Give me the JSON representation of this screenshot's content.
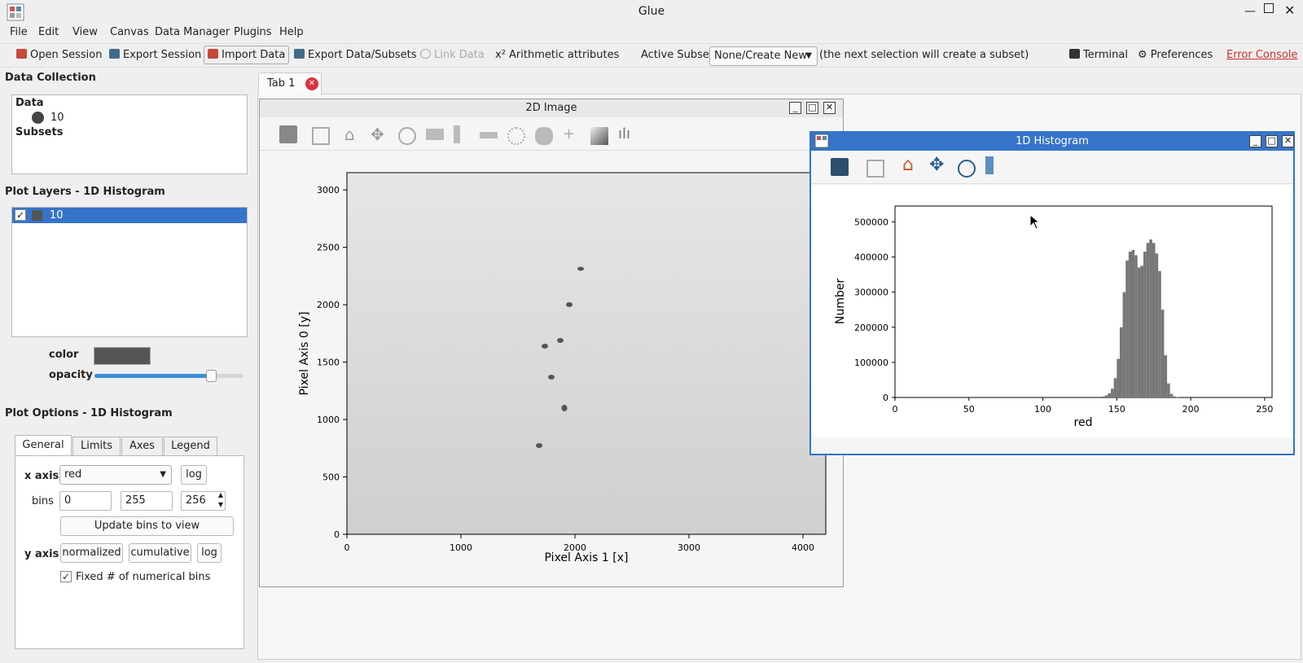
{
  "app": {
    "title": "Glue"
  },
  "menu": [
    "File",
    "Edit",
    "View",
    "Canvas",
    "Data Manager",
    "Plugins",
    "Help"
  ],
  "toolbar": {
    "open_session": "Open Session",
    "export_session": "Export Session",
    "import_data": "Import Data",
    "export_data": "Export Data/Subsets",
    "link_data": "Link Data",
    "arithmetic": "x² Arithmetic attributes",
    "active_subset_label": "Active Subset:",
    "active_subset_value": "None/Create New",
    "active_subset_hint": "(the next selection will create a subset)",
    "terminal": "Terminal",
    "preferences": "Preferences",
    "error_console": "Error Console"
  },
  "data_collection": {
    "title": "Data Collection",
    "data_header": "Data",
    "items": [
      "10"
    ],
    "subsets_header": "Subsets"
  },
  "plot_layers": {
    "title": "Plot Layers - 1D Histogram",
    "items": [
      {
        "label": "10",
        "checked": true
      }
    ],
    "color_label": "color",
    "color_value": "#555555",
    "opacity_label": "opacity",
    "opacity": 0.78
  },
  "plot_options": {
    "title": "Plot Options - 1D Histogram",
    "tabs": [
      "General",
      "Limits",
      "Axes",
      "Legend"
    ],
    "active_tab": "General",
    "x_axis_label": "x axis",
    "x_axis_value": "red",
    "log_label": "log",
    "bins_label": "bins",
    "bins_min": "0",
    "bins_max": "255",
    "bins_count": "256",
    "update_bins": "Update bins to view",
    "y_axis_label": "y axis",
    "normalized": "normalized",
    "cumulative": "cumulative",
    "y_log": "log",
    "fixed_bins_label": "Fixed # of numerical bins",
    "fixed_bins_checked": true
  },
  "tabs": [
    {
      "label": "Tab 1"
    }
  ],
  "image_window": {
    "title": "2D Image",
    "xlabel": "Pixel Axis 1 [x]",
    "ylabel": "Pixel Axis 0 [y]",
    "xticks": [
      "0",
      "1000",
      "2000",
      "3000",
      "4000"
    ],
    "yticks": [
      "0",
      "500",
      "1000",
      "1500",
      "2000",
      "2500",
      "3000"
    ]
  },
  "hist_window": {
    "title": "1D Histogram"
  },
  "chart_data": {
    "type": "bar",
    "title": "",
    "xlabel": "red",
    "ylabel": "Number",
    "xlim": [
      0,
      255
    ],
    "ylim": [
      0,
      545000
    ],
    "xticks": [
      "0",
      "50",
      "100",
      "150",
      "200",
      "250"
    ],
    "yticks": [
      "0",
      "100000",
      "200000",
      "300000",
      "400000",
      "500000"
    ],
    "color": "#777777",
    "x": [
      140,
      142,
      144,
      146,
      148,
      150,
      152,
      154,
      156,
      158,
      160,
      162,
      164,
      166,
      168,
      170,
      172,
      174,
      176,
      178,
      180,
      182,
      184,
      186,
      188,
      190
    ],
    "values": [
      3000,
      6000,
      12000,
      25000,
      55000,
      110000,
      200000,
      300000,
      390000,
      415000,
      420000,
      405000,
      370000,
      375000,
      415000,
      440000,
      450000,
      440000,
      410000,
      360000,
      250000,
      120000,
      40000,
      10000,
      3000,
      1000
    ]
  }
}
